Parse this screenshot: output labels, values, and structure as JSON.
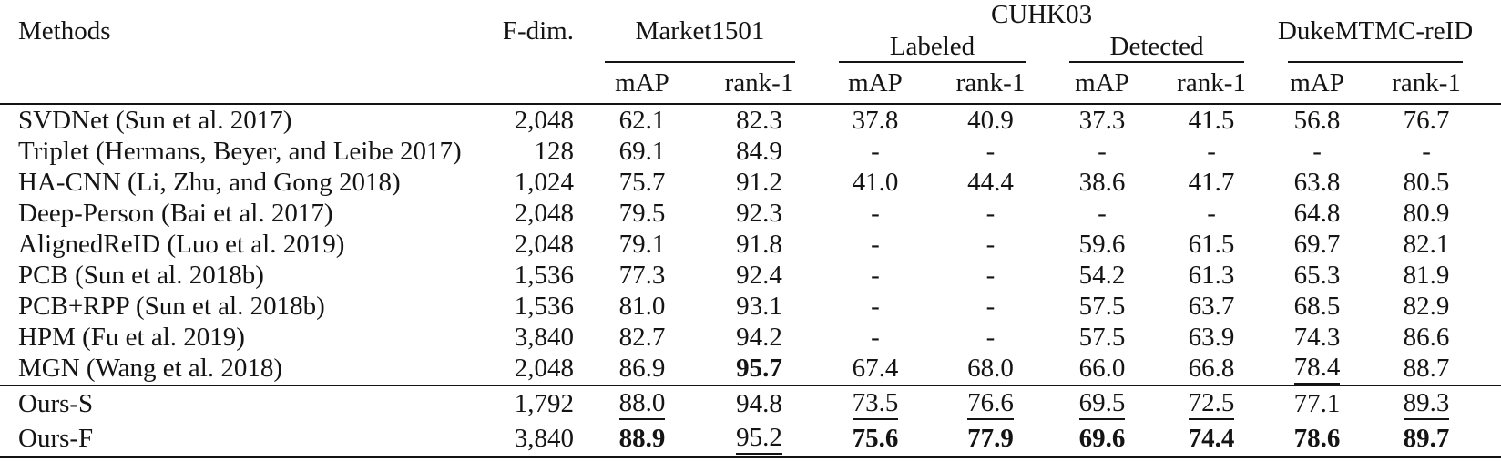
{
  "header": {
    "methods_label": "Methods",
    "fdim_label": "F-dim.",
    "groups": {
      "market": "Market1501",
      "cuhk": "CUHK03",
      "cuhk_labeled": "Labeled",
      "cuhk_detected": "Detected",
      "duke": "DukeMTMC-reID"
    },
    "metric_map": "mAP",
    "metric_rank1": "rank-1"
  },
  "rows": [
    {
      "method": "SVDNet (Sun et al. 2017)",
      "fdim": "2,048",
      "cells": [
        {
          "t": "62.1"
        },
        {
          "t": "82.3"
        },
        {
          "t": "37.8"
        },
        {
          "t": "40.9"
        },
        {
          "t": "37.3"
        },
        {
          "t": "41.5"
        },
        {
          "t": "56.8"
        },
        {
          "t": "76.7"
        }
      ]
    },
    {
      "method": "Triplet (Hermans, Beyer, and Leibe 2017)",
      "fdim": "128",
      "cells": [
        {
          "t": "69.1"
        },
        {
          "t": "84.9"
        },
        {
          "t": "-"
        },
        {
          "t": "-"
        },
        {
          "t": "-"
        },
        {
          "t": "-"
        },
        {
          "t": "-"
        },
        {
          "t": "-"
        }
      ]
    },
    {
      "method": "HA-CNN (Li, Zhu, and Gong 2018)",
      "fdim": "1,024",
      "cells": [
        {
          "t": "75.7"
        },
        {
          "t": "91.2"
        },
        {
          "t": "41.0"
        },
        {
          "t": "44.4"
        },
        {
          "t": "38.6"
        },
        {
          "t": "41.7"
        },
        {
          "t": "63.8"
        },
        {
          "t": "80.5"
        }
      ]
    },
    {
      "method": "Deep-Person (Bai et al. 2017)",
      "fdim": "2,048",
      "cells": [
        {
          "t": "79.5"
        },
        {
          "t": "92.3"
        },
        {
          "t": "-"
        },
        {
          "t": "-"
        },
        {
          "t": "-"
        },
        {
          "t": "-"
        },
        {
          "t": "64.8"
        },
        {
          "t": "80.9"
        }
      ]
    },
    {
      "method": "AlignedReID (Luo et al. 2019)",
      "fdim": "2,048",
      "cells": [
        {
          "t": "79.1"
        },
        {
          "t": "91.8"
        },
        {
          "t": "-"
        },
        {
          "t": "-"
        },
        {
          "t": "59.6"
        },
        {
          "t": "61.5"
        },
        {
          "t": "69.7"
        },
        {
          "t": "82.1"
        }
      ]
    },
    {
      "method": "PCB (Sun et al. 2018b)",
      "fdim": "1,536",
      "cells": [
        {
          "t": "77.3"
        },
        {
          "t": "92.4"
        },
        {
          "t": "-"
        },
        {
          "t": "-"
        },
        {
          "t": "54.2"
        },
        {
          "t": "61.3"
        },
        {
          "t": "65.3"
        },
        {
          "t": "81.9"
        }
      ]
    },
    {
      "method": "PCB+RPP (Sun et al. 2018b)",
      "fdim": "1,536",
      "cells": [
        {
          "t": "81.0"
        },
        {
          "t": "93.1"
        },
        {
          "t": "-"
        },
        {
          "t": "-"
        },
        {
          "t": "57.5"
        },
        {
          "t": "63.7"
        },
        {
          "t": "68.5"
        },
        {
          "t": "82.9"
        }
      ]
    },
    {
      "method": "HPM (Fu et al. 2019)",
      "fdim": "3,840",
      "cells": [
        {
          "t": "82.7"
        },
        {
          "t": "94.2"
        },
        {
          "t": "-"
        },
        {
          "t": "-"
        },
        {
          "t": "57.5"
        },
        {
          "t": "63.9"
        },
        {
          "t": "74.3"
        },
        {
          "t": "86.6"
        }
      ]
    },
    {
      "method": "MGN (Wang et al. 2018)",
      "fdim": "2,048",
      "cells": [
        {
          "t": "86.9"
        },
        {
          "t": "95.7",
          "s": "bold"
        },
        {
          "t": "67.4"
        },
        {
          "t": "68.0"
        },
        {
          "t": "66.0"
        },
        {
          "t": "66.8"
        },
        {
          "t": "78.4",
          "s": "underline"
        },
        {
          "t": "88.7"
        }
      ]
    }
  ],
  "ours_rows": [
    {
      "method": "Ours-S",
      "fdim": "1,792",
      "cells": [
        {
          "t": "88.0",
          "s": "underline"
        },
        {
          "t": "94.8"
        },
        {
          "t": "73.5",
          "s": "underline"
        },
        {
          "t": "76.6",
          "s": "underline"
        },
        {
          "t": "69.5",
          "s": "underline"
        },
        {
          "t": "72.5",
          "s": "underline"
        },
        {
          "t": "77.1"
        },
        {
          "t": "89.3",
          "s": "underline"
        }
      ]
    },
    {
      "method": "Ours-F",
      "fdim": "3,840",
      "cells": [
        {
          "t": "88.9",
          "s": "bold"
        },
        {
          "t": "95.2",
          "s": "underline"
        },
        {
          "t": "75.6",
          "s": "bold"
        },
        {
          "t": "77.9",
          "s": "bold"
        },
        {
          "t": "69.6",
          "s": "bold"
        },
        {
          "t": "74.4",
          "s": "bold"
        },
        {
          "t": "78.6",
          "s": "bold"
        },
        {
          "t": "89.7",
          "s": "bold"
        }
      ]
    }
  ]
}
